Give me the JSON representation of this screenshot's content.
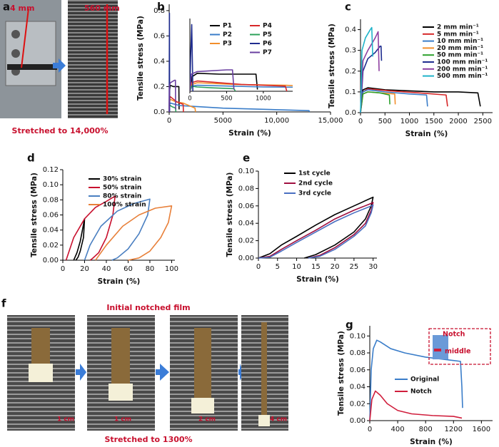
{
  "panel_labels": [
    "a",
    "b",
    "c",
    "d",
    "e",
    "f",
    "g"
  ],
  "photos_a": {
    "labels": [
      "4 mm",
      "560 mm"
    ],
    "caption": "Stretched to 14,000%"
  },
  "photos_f": {
    "title": "Initial notched film",
    "caption": "Stretched to 1300%",
    "scale_labels": [
      "1 cm",
      "1 cm",
      "2 cm",
      "4 cm"
    ]
  },
  "chart_data": [
    {
      "type": "line",
      "x_label": "Strain (%)",
      "y_label": "Tensile stress (MPa)",
      "xlim": [
        0,
        15000
      ],
      "xticks": [
        0,
        5000,
        {
          "value": 10000,
          "label": "10,000"
        },
        {
          "value": 15000,
          "label": "15,000"
        }
      ],
      "ylim": [
        0,
        0.85
      ],
      "yticks": [
        {
          "value": 0,
          "label": "0.0"
        },
        0.2,
        0.4,
        0.6,
        0.8
      ],
      "inset": {
        "xlim": [
          0,
          1400
        ],
        "xticks": [
          0,
          500,
          1000
        ],
        "ylim": [
          0,
          0.85
        ]
      },
      "series": [
        {
          "name": "P1",
          "color": "#000000",
          "x": [
            0,
            30,
            100,
            400,
            900,
            920
          ],
          "values": [
            0,
            0.17,
            0.21,
            0.2,
            0.2,
            0.02
          ]
        },
        {
          "name": "P2",
          "color": "#3a7dc9",
          "x": [
            0,
            30,
            100,
            1000,
            5000,
            13000,
            13050
          ],
          "values": [
            0,
            0.06,
            0.07,
            0.05,
            0.03,
            0.01,
            0
          ]
        },
        {
          "name": "P3",
          "color": "#f28e2b",
          "x": [
            0,
            30,
            100,
            600,
            1300,
            2400,
            2450
          ],
          "values": [
            0,
            0.08,
            0.1,
            0.08,
            0.07,
            0.03,
            0
          ]
        },
        {
          "name": "P4",
          "color": "#d62728",
          "x": [
            0,
            20,
            100,
            700,
            1300,
            1320
          ],
          "values": [
            0,
            0.1,
            0.12,
            0.08,
            0.06,
            0
          ]
        },
        {
          "name": "P5",
          "color": "#2ca05a",
          "x": [
            0,
            20,
            100,
            300,
            600,
            620
          ],
          "values": [
            0,
            0.06,
            0.05,
            0.04,
            0.03,
            0
          ]
        },
        {
          "name": "P6",
          "color": "#1f2d8f",
          "x": [
            0,
            10,
            25,
            35,
            40
          ],
          "values": [
            0,
            0.4,
            0.78,
            0.3,
            0
          ]
        },
        {
          "name": "P7",
          "color": "#6a3fa0",
          "x": [
            0,
            20,
            100,
            500,
            580,
            600
          ],
          "values": [
            0,
            0.2,
            0.23,
            0.25,
            0.25,
            0.02
          ]
        }
      ]
    },
    {
      "type": "line",
      "x_label": "Strain (%)",
      "y_label": "Tensile stress (MPa)",
      "xlim": [
        0,
        2700
      ],
      "xticks": [
        0,
        500,
        1000,
        1500,
        2000,
        2500
      ],
      "ylim": [
        0,
        0.45
      ],
      "yticks": [
        {
          "value": 0,
          "label": "0.0"
        },
        0.1,
        0.2,
        0.3,
        0.4
      ],
      "series": [
        {
          "name": "2 mm min⁻¹",
          "color": "#000000",
          "x": [
            0,
            50,
            150,
            500,
            1000,
            1500,
            2000,
            2400,
            2450
          ],
          "values": [
            0,
            0.11,
            0.12,
            0.11,
            0.105,
            0.1,
            0.1,
            0.095,
            0.03
          ]
        },
        {
          "name": "5 mm min⁻¹",
          "color": "#d62728",
          "x": [
            0,
            50,
            150,
            600,
            1200,
            1750,
            1780
          ],
          "values": [
            0,
            0.1,
            0.115,
            0.105,
            0.095,
            0.085,
            0.03
          ]
        },
        {
          "name": "10 mm min⁻¹",
          "color": "#3a7dc9",
          "x": [
            0,
            50,
            150,
            500,
            1000,
            1350,
            1370
          ],
          "values": [
            0,
            0.1,
            0.11,
            0.1,
            0.09,
            0.085,
            0.03
          ]
        },
        {
          "name": "20 mm min⁻¹",
          "color": "#f28e2b",
          "x": [
            0,
            50,
            150,
            400,
            700,
            710
          ],
          "values": [
            0,
            0.09,
            0.1,
            0.095,
            0.09,
            0.04
          ]
        },
        {
          "name": "50 mm min⁻¹",
          "color": "#2ca02c",
          "x": [
            0,
            50,
            150,
            400,
            590,
            600
          ],
          "values": [
            0,
            0.09,
            0.1,
            0.095,
            0.085,
            0.04
          ]
        },
        {
          "name": "100 mm min⁻¹",
          "color": "#1f2d8f",
          "x": [
            0,
            50,
            150,
            300,
            400,
            420,
            430
          ],
          "values": [
            0,
            0.2,
            0.26,
            0.29,
            0.32,
            0.32,
            0.25
          ]
        },
        {
          "name": "200 mm min⁻¹",
          "color": "#8e3fa0",
          "x": [
            0,
            50,
            150,
            300,
            360,
            380
          ],
          "values": [
            0,
            0.25,
            0.3,
            0.36,
            0.39,
            0.2
          ]
        },
        {
          "name": "500 mm min⁻¹",
          "color": "#1fb3c9",
          "x": [
            0,
            30,
            100,
            200,
            230,
            250
          ],
          "values": [
            0,
            0.3,
            0.36,
            0.4,
            0.41,
            0.27
          ]
        }
      ]
    },
    {
      "type": "line",
      "x_label": "Strain (%)",
      "y_label": "Tensile stress (MPa)",
      "xlim": [
        0,
        103
      ],
      "xticks": [
        0,
        20,
        40,
        60,
        80,
        100
      ],
      "ylim": [
        0,
        0.12
      ],
      "yticks": [
        {
          "value": 0,
          "label": "0.00"
        },
        0.02,
        0.04,
        0.06,
        0.08,
        {
          "value": 0.1,
          "label": "0.10"
        },
        0.12
      ],
      "series": [
        {
          "name": "30% strain",
          "color": "#000000",
          "x": [
            10,
            13,
            16,
            18,
            20,
            19,
            16,
            14,
            12
          ],
          "values": [
            0,
            0.01,
            0.025,
            0.04,
            0.055,
            0.03,
            0.012,
            0.004,
            0
          ]
        },
        {
          "name": "50% strain",
          "color": "#c8102e",
          "x": [
            3,
            10,
            20,
            30,
            40,
            48,
            46,
            40,
            33,
            27,
            25
          ],
          "values": [
            0,
            0.03,
            0.055,
            0.07,
            0.078,
            0.085,
            0.06,
            0.03,
            0.01,
            0.002,
            0
          ]
        },
        {
          "name": "80% strain",
          "color": "#4a7fc1",
          "x": [
            20,
            25,
            35,
            50,
            65,
            80,
            78,
            70,
            60,
            50,
            45
          ],
          "values": [
            0,
            0.02,
            0.045,
            0.065,
            0.075,
            0.081,
            0.06,
            0.035,
            0.015,
            0.003,
            0
          ]
        },
        {
          "name": "100% strain",
          "color": "#e8803a",
          "x": [
            30,
            40,
            55,
            70,
            85,
            100,
            97,
            90,
            80,
            70,
            60
          ],
          "values": [
            0,
            0.02,
            0.045,
            0.06,
            0.069,
            0.072,
            0.05,
            0.03,
            0.012,
            0.003,
            0
          ]
        }
      ]
    },
    {
      "type": "line",
      "x_label": "Strain (%)",
      "y_label": "Tensile stress (MPa)",
      "xlim": [
        0,
        31
      ],
      "xticks": [
        0,
        5,
        10,
        15,
        20,
        25,
        30
      ],
      "ylim": [
        0,
        0.1
      ],
      "yticks": [
        {
          "value": 0,
          "label": "0.00"
        },
        0.02,
        0.04,
        0.06,
        0.08,
        {
          "value": 0.1,
          "label": "0.10"
        }
      ],
      "series": [
        {
          "name": "1st cycle",
          "color": "#000000",
          "x": [
            0,
            3,
            6,
            10,
            15,
            20,
            25,
            29,
            30,
            29.5,
            28,
            25,
            20,
            15,
            12
          ],
          "values": [
            0,
            0.005,
            0.015,
            0.025,
            0.038,
            0.05,
            0.06,
            0.068,
            0.07,
            0.06,
            0.045,
            0.03,
            0.015,
            0.004,
            0
          ]
        },
        {
          "name": "2nd cycle",
          "color": "#a01040",
          "x": [
            0,
            3,
            6,
            10,
            15,
            20,
            25,
            29,
            30,
            29.5,
            28,
            25,
            20,
            16,
            13
          ],
          "values": [
            0,
            0.002,
            0.01,
            0.02,
            0.032,
            0.045,
            0.055,
            0.062,
            0.064,
            0.055,
            0.04,
            0.027,
            0.012,
            0.003,
            0
          ]
        },
        {
          "name": "3rd cycle",
          "color": "#4a6fc1",
          "x": [
            0,
            3,
            6,
            10,
            15,
            20,
            25,
            29,
            30,
            29.5,
            28,
            25,
            20,
            16,
            13
          ],
          "values": [
            0,
            0.001,
            0.008,
            0.018,
            0.03,
            0.042,
            0.052,
            0.059,
            0.061,
            0.052,
            0.037,
            0.025,
            0.01,
            0.002,
            0
          ]
        }
      ]
    },
    {
      "type": "line",
      "x_label": "Strain (%)",
      "y_label": "Tensile stress (MPa)",
      "xlim": [
        0,
        1760
      ],
      "xticks": [
        0,
        400,
        800,
        1200,
        1600
      ],
      "ylim": [
        0,
        0.112
      ],
      "yticks": [
        {
          "value": 0,
          "label": "0.00"
        },
        0.02,
        0.04,
        0.06,
        0.08,
        {
          "value": 0.1,
          "label": "0.10"
        }
      ],
      "inset_labels": [
        "Notch",
        "middle"
      ],
      "series": [
        {
          "name": "Original",
          "color": "#3a7dc9",
          "x": [
            0,
            20,
            50,
            100,
            150,
            300,
            500,
            800,
            1000,
            1200,
            1300,
            1320,
            1330
          ],
          "values": [
            0,
            0.06,
            0.085,
            0.095,
            0.093,
            0.085,
            0.08,
            0.075,
            0.073,
            0.071,
            0.07,
            0.04,
            0.015
          ]
        },
        {
          "name": "Notch",
          "color": "#d01e3c",
          "x": [
            0,
            30,
            80,
            150,
            250,
            400,
            600,
            900,
            1200,
            1320
          ],
          "values": [
            0,
            0.025,
            0.035,
            0.03,
            0.02,
            0.012,
            0.008,
            0.006,
            0.005,
            0.003
          ]
        }
      ]
    }
  ]
}
